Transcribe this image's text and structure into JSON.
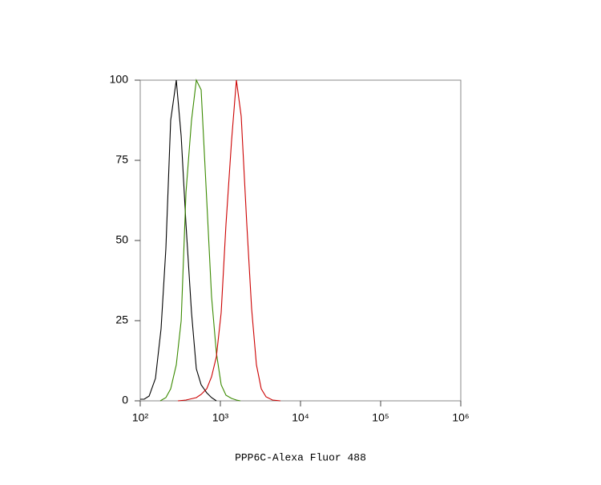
{
  "chart_data": {
    "type": "line",
    "xscale": "log",
    "xlabel": "PPP6C-Alexa Fluor 488",
    "xlim": [
      100,
      1000000
    ],
    "xticks": [
      {
        "value": 100,
        "label": "10²"
      },
      {
        "value": 1000,
        "label": "10³"
      },
      {
        "value": 10000,
        "label": "10⁴"
      },
      {
        "value": 100000,
        "label": "10⁵"
      },
      {
        "value": 1000000,
        "label": "10⁶"
      }
    ],
    "ylim": [
      0,
      100
    ],
    "yticks": [
      0,
      25,
      50,
      75,
      100
    ],
    "series": [
      {
        "color": "#000000",
        "x": [
          100,
          112,
          129,
          155,
          182,
          209,
          240,
          282,
          324,
          372,
          437,
          501,
          575,
          676,
          776,
          891
        ],
        "values": [
          0.5,
          0.5,
          1.5,
          7,
          22.5,
          47.5,
          87.5,
          100,
          82.5,
          55,
          27.5,
          10,
          5,
          2.5,
          1,
          0
        ]
      },
      {
        "color": "#3a8a00",
        "x": [
          178,
          209,
          240,
          282,
          324,
          372,
          437,
          501,
          575,
          676,
          776,
          891,
          1023,
          1175,
          1380,
          1585,
          1778
        ],
        "values": [
          0,
          1,
          3.75,
          11.25,
          25,
          65,
          87.5,
          100,
          97,
          62.5,
          32.5,
          15,
          5,
          1.75,
          0.75,
          0.25,
          0
        ]
      },
      {
        "color": "#cc0000",
        "x": [
          295,
          372,
          501,
          575,
          676,
          776,
          891,
          1023,
          1175,
          1380,
          1585,
          1820,
          2138,
          2455,
          2818,
          3236,
          3715,
          4467,
          5623
        ],
        "values": [
          0,
          0.25,
          1,
          2,
          3.75,
          7.5,
          13.75,
          27.5,
          55,
          81.25,
          100,
          88.75,
          55,
          28.75,
          11.25,
          3.75,
          1.25,
          0.25,
          0
        ]
      }
    ]
  }
}
